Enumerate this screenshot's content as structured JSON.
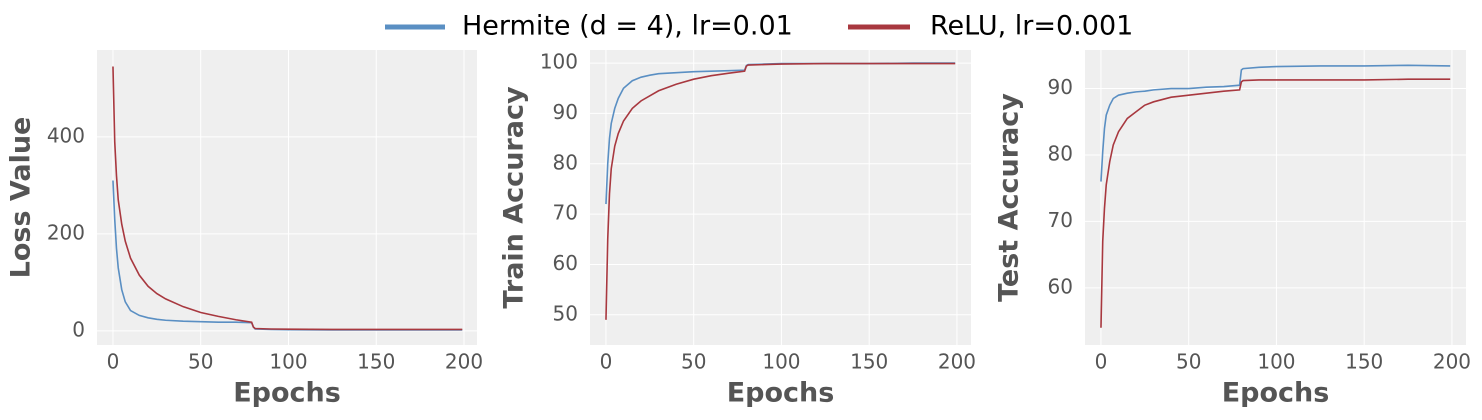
{
  "chart_data": [
    {
      "type": "line",
      "ylabel": "Loss Value",
      "xlabel": "Epochs",
      "grid": true,
      "xlim": [
        -9.1,
        207.4
      ],
      "xticks": [
        0,
        50,
        100,
        150,
        200
      ],
      "ylim": [
        -29,
        579
      ],
      "yticks": [
        0,
        200,
        400
      ],
      "x": [
        0,
        1,
        2,
        3,
        5,
        7,
        10,
        15,
        20,
        25,
        30,
        40,
        50,
        60,
        70,
        79,
        80,
        81,
        90,
        100,
        125,
        150,
        175,
        199
      ],
      "series": [
        {
          "name": "Hermite (d = 4), lr=0.01",
          "color": "#5a8fc3",
          "values": [
            310,
            230,
            170,
            130,
            85,
            60,
            42,
            32,
            27,
            24,
            22,
            20,
            19,
            18,
            18,
            17,
            8,
            4,
            3,
            2.5,
            2,
            2,
            2,
            2
          ]
        },
        {
          "name": "ReLU, lr=0.001",
          "color": "#a8383f",
          "values": [
            545,
            390,
            320,
            270,
            220,
            185,
            150,
            115,
            92,
            77,
            66,
            50,
            38,
            30,
            23,
            18,
            8,
            5,
            4,
            3.5,
            3,
            3,
            3,
            3
          ]
        }
      ]
    },
    {
      "type": "line",
      "ylabel": "Train Accuracy",
      "xlabel": "Epochs",
      "grid": true,
      "xlim": [
        -9.1,
        208
      ],
      "xticks": [
        0,
        50,
        100,
        150,
        200
      ],
      "ylim": [
        44,
        102.6
      ],
      "yticks": [
        50,
        60,
        70,
        80,
        90,
        100
      ],
      "x": [
        0,
        1,
        2,
        3,
        5,
        7,
        10,
        15,
        20,
        25,
        30,
        40,
        50,
        60,
        70,
        79,
        80,
        81,
        90,
        100,
        125,
        150,
        175,
        199
      ],
      "series": [
        {
          "name": "Hermite (d = 4), lr=0.01",
          "color": "#5a8fc3",
          "values": [
            72,
            80,
            85,
            88,
            91,
            93,
            95,
            96.5,
            97.2,
            97.6,
            97.9,
            98.1,
            98.3,
            98.4,
            98.5,
            98.6,
            99.5,
            99.7,
            99.8,
            99.9,
            99.9,
            99.9,
            100,
            100
          ]
        },
        {
          "name": "ReLU, lr=0.001",
          "color": "#a8383f",
          "values": [
            49,
            65,
            74,
            79,
            83.5,
            86,
            88.5,
            91,
            92.5,
            93.5,
            94.5,
            95.8,
            96.8,
            97.5,
            98,
            98.4,
            99.4,
            99.6,
            99.7,
            99.8,
            99.9,
            99.9,
            99.9,
            99.9
          ]
        }
      ]
    },
    {
      "type": "line",
      "ylabel": "Test Accuracy",
      "xlabel": "Epochs",
      "grid": true,
      "xlim": [
        -9.1,
        208
      ],
      "xticks": [
        0,
        50,
        100,
        150,
        200
      ],
      "ylim": [
        51.4,
        95.8
      ],
      "yticks": [
        60,
        70,
        80,
        90
      ],
      "x": [
        0,
        1,
        2,
        3,
        5,
        7,
        10,
        15,
        20,
        25,
        30,
        40,
        50,
        60,
        70,
        79,
        80,
        81,
        90,
        100,
        125,
        150,
        175,
        199
      ],
      "series": [
        {
          "name": "Hermite (d = 4), lr=0.01",
          "color": "#5a8fc3",
          "values": [
            76,
            80.5,
            84,
            86,
            87.5,
            88.5,
            89,
            89.3,
            89.5,
            89.6,
            89.8,
            90,
            90,
            90.2,
            90.3,
            90.5,
            92.8,
            93,
            93.2,
            93.3,
            93.4,
            93.4,
            93.5,
            93.4
          ]
        },
        {
          "name": "ReLU, lr=0.001",
          "color": "#a8383f",
          "values": [
            54,
            67,
            72,
            75.5,
            79,
            81.5,
            83.5,
            85.5,
            86.5,
            87.5,
            88,
            88.7,
            89,
            89.3,
            89.6,
            89.8,
            91,
            91.2,
            91.3,
            91.3,
            91.3,
            91.3,
            91.4,
            91.4
          ]
        }
      ]
    }
  ]
}
